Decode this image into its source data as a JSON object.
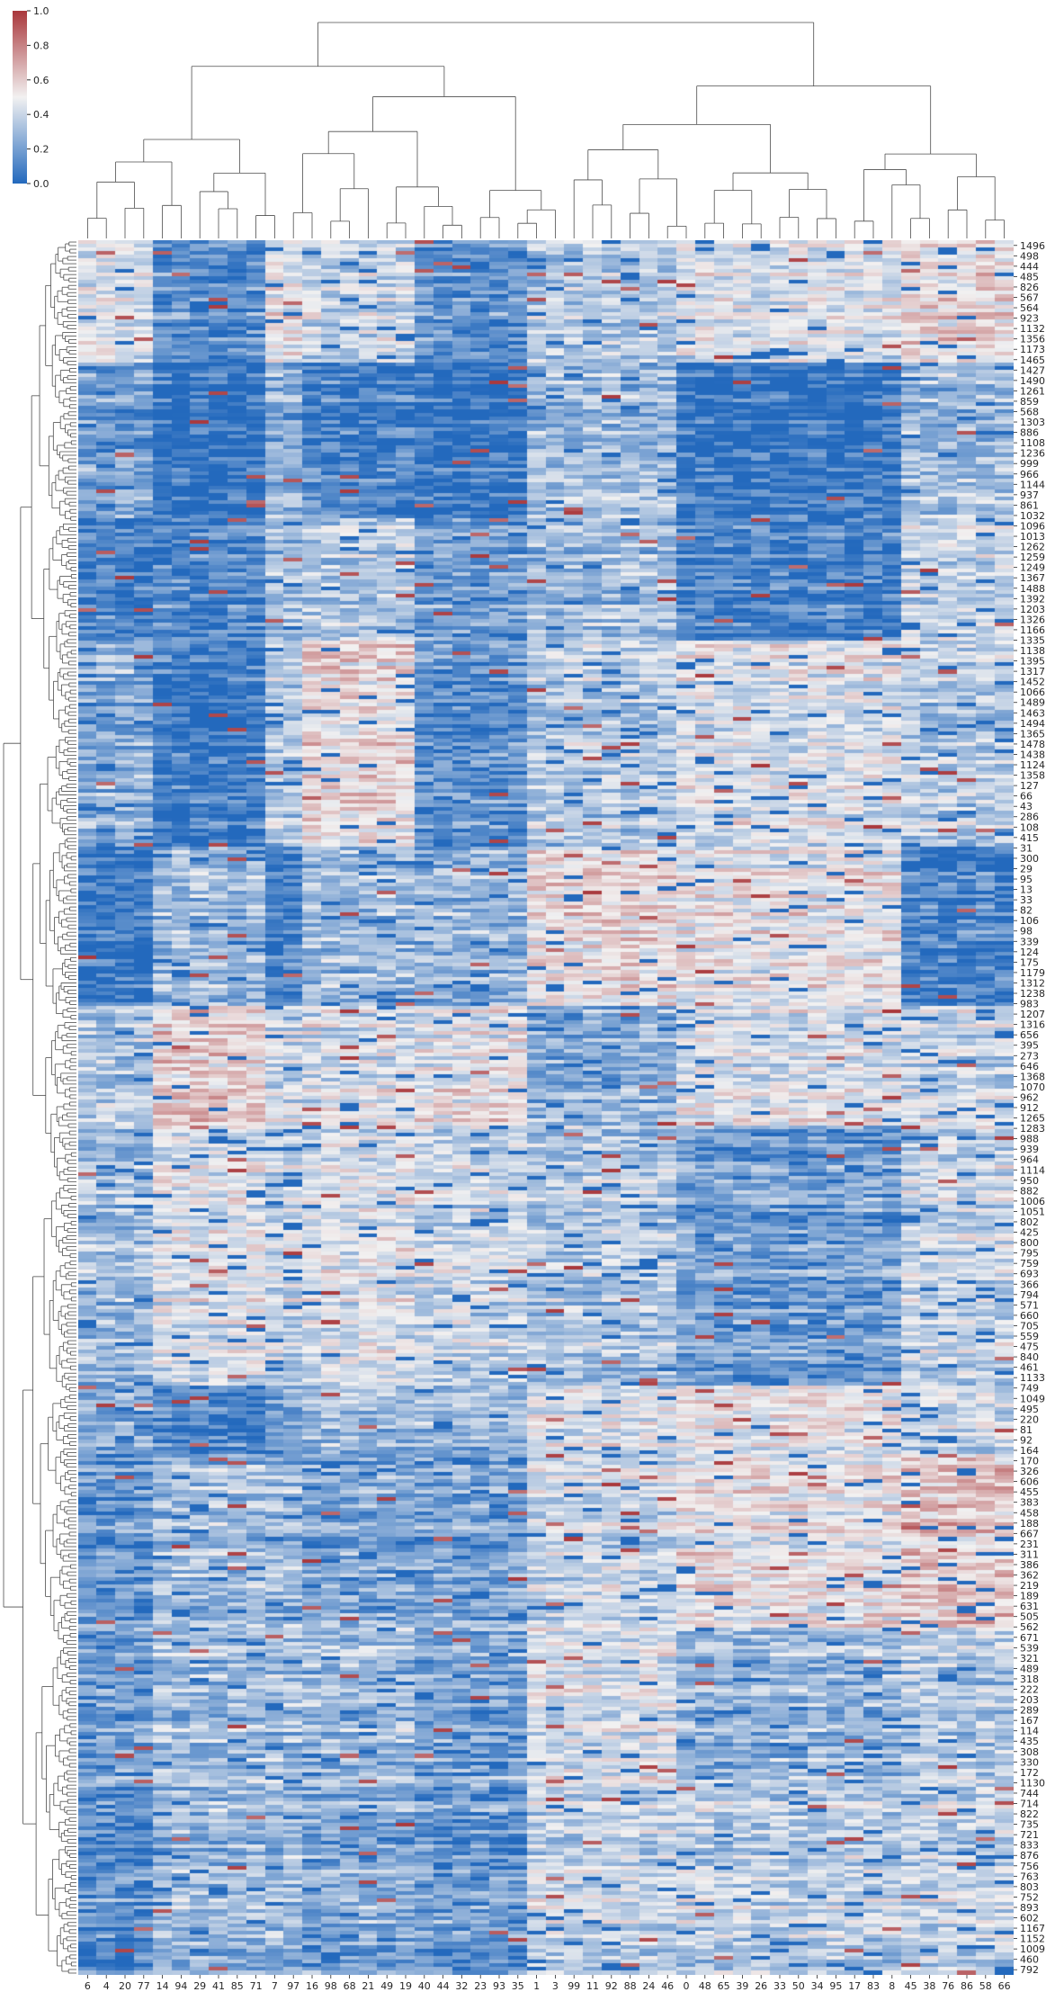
{
  "chart_data": {
    "type": "heatmap",
    "subtype": "clustermap",
    "colormap": "vlag",
    "colors": {
      "low": "#2369bd",
      "mid": "#f2f1f1",
      "high": "#a9373b"
    },
    "value_range": [
      0.0,
      1.0
    ],
    "colorbar": {
      "ticks": [
        0.0,
        0.2,
        0.4,
        0.6,
        0.8,
        1.0
      ],
      "tick_labels": [
        "0.0",
        "0.2",
        "0.4",
        "0.6",
        "0.8",
        "1.0"
      ]
    },
    "column_labels": [
      "6",
      "4",
      "20",
      "77",
      "14",
      "94",
      "29",
      "41",
      "85",
      "71",
      "7",
      "97",
      "16",
      "98",
      "68",
      "21",
      "49",
      "19",
      "40",
      "44",
      "32",
      "23",
      "93",
      "35",
      "1",
      "3",
      "99",
      "11",
      "92",
      "88",
      "24",
      "46",
      "0",
      "48",
      "65",
      "39",
      "26",
      "33",
      "50",
      "34",
      "95",
      "17",
      "83",
      "8",
      "45",
      "38",
      "76",
      "86",
      "58",
      "66"
    ],
    "row_labels": [
      "1496",
      "498",
      "444",
      "485",
      "826",
      "567",
      "564",
      "923",
      "1132",
      "1356",
      "1173",
      "1465",
      "1427",
      "1490",
      "1261",
      "859",
      "568",
      "1303",
      "886",
      "1108",
      "1236",
      "999",
      "966",
      "1144",
      "937",
      "861",
      "1032",
      "1096",
      "1013",
      "1262",
      "1259",
      "1249",
      "1367",
      "1488",
      "1392",
      "1203",
      "1326",
      "1166",
      "1335",
      "1138",
      "1395",
      "1317",
      "1452",
      "1066",
      "1489",
      "1463",
      "1494",
      "1365",
      "1478",
      "1438",
      "1124",
      "1358",
      "127",
      "66",
      "43",
      "286",
      "108",
      "415",
      "31",
      "300",
      "29",
      "95",
      "13",
      "33",
      "82",
      "106",
      "98",
      "339",
      "124",
      "175",
      "1179",
      "1312",
      "1238",
      "983",
      "1207",
      "1316",
      "656",
      "395",
      "273",
      "646",
      "1368",
      "1070",
      "962",
      "912",
      "1265",
      "1283",
      "988",
      "939",
      "964",
      "1114",
      "950",
      "882",
      "1006",
      "1051",
      "802",
      "425",
      "800",
      "795",
      "759",
      "693",
      "366",
      "794",
      "571",
      "660",
      "705",
      "559",
      "475",
      "840",
      "461",
      "1133",
      "749",
      "1049",
      "495",
      "220",
      "81",
      "92",
      "164",
      "170",
      "326",
      "606",
      "455",
      "383",
      "458",
      "188",
      "667",
      "231",
      "311",
      "386",
      "362",
      "219",
      "189",
      "631",
      "505",
      "562",
      "671",
      "539",
      "321",
      "489",
      "318",
      "222",
      "203",
      "289",
      "167",
      "114",
      "435",
      "308",
      "330",
      "172",
      "1130",
      "744",
      "714",
      "822",
      "735",
      "721",
      "833",
      "876",
      "756",
      "763",
      "803",
      "752",
      "893",
      "602",
      "1167",
      "1152",
      "1009",
      "460",
      "792"
    ],
    "row_dendrogram": "left",
    "column_dendrogram": "top",
    "grid": false,
    "legend": "colorbar top-left"
  }
}
